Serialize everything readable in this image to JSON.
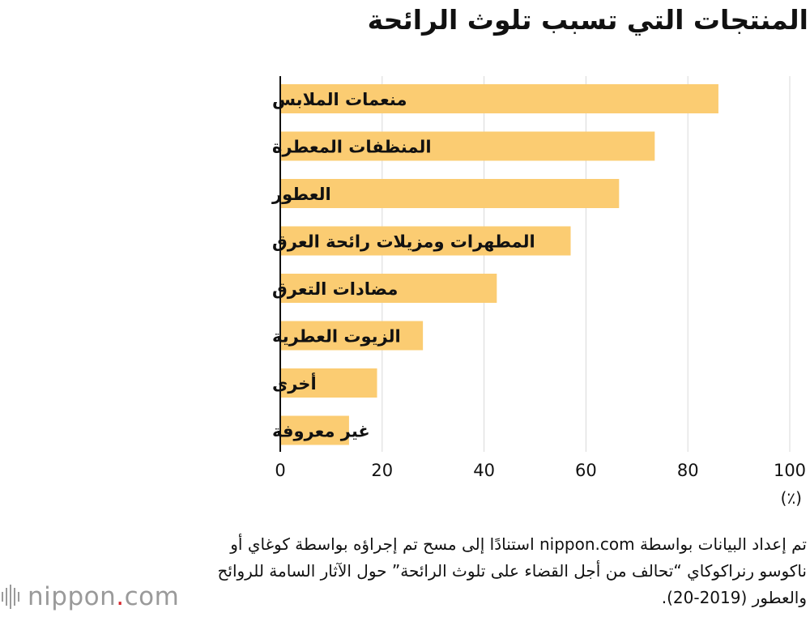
{
  "chart_data": {
    "type": "bar",
    "orientation": "horizontal",
    "title": "المنتجات التي تسبب تلوث الرائحة",
    "categories": [
      "منعمات الملابس",
      "المنظفات المعطرة",
      "العطور",
      "المطهرات ومزيلات رائحة العرق",
      "مضادات التعرق",
      "الزيوت العطرية",
      "أخرى",
      "غير معروفة"
    ],
    "values": [
      86,
      73.5,
      66.5,
      57,
      42.5,
      28,
      19,
      13.5
    ],
    "xlim": [
      0,
      100
    ],
    "xticks": [
      "0",
      "20",
      "40",
      "60",
      "80",
      "100"
    ],
    "unit_label": "(٪)",
    "bar_color": "#fbcc72",
    "grid": true
  },
  "source_text": "تم إعداد البيانات بواسطة nippon.com استنادًا إلى مسح تم إجراؤه بواسطة كوغاي أو ناكوسو رنراكوكاي “تحالف من أجل القضاء على تلوث الرائحة” حول الآثار السامة للروائح والعطور (2019-20).",
  "logo": {
    "name": "nippon",
    "dot": ".",
    "suffix": "com",
    "icon": "nippon-bars-icon",
    "accent": "#d7262d"
  }
}
